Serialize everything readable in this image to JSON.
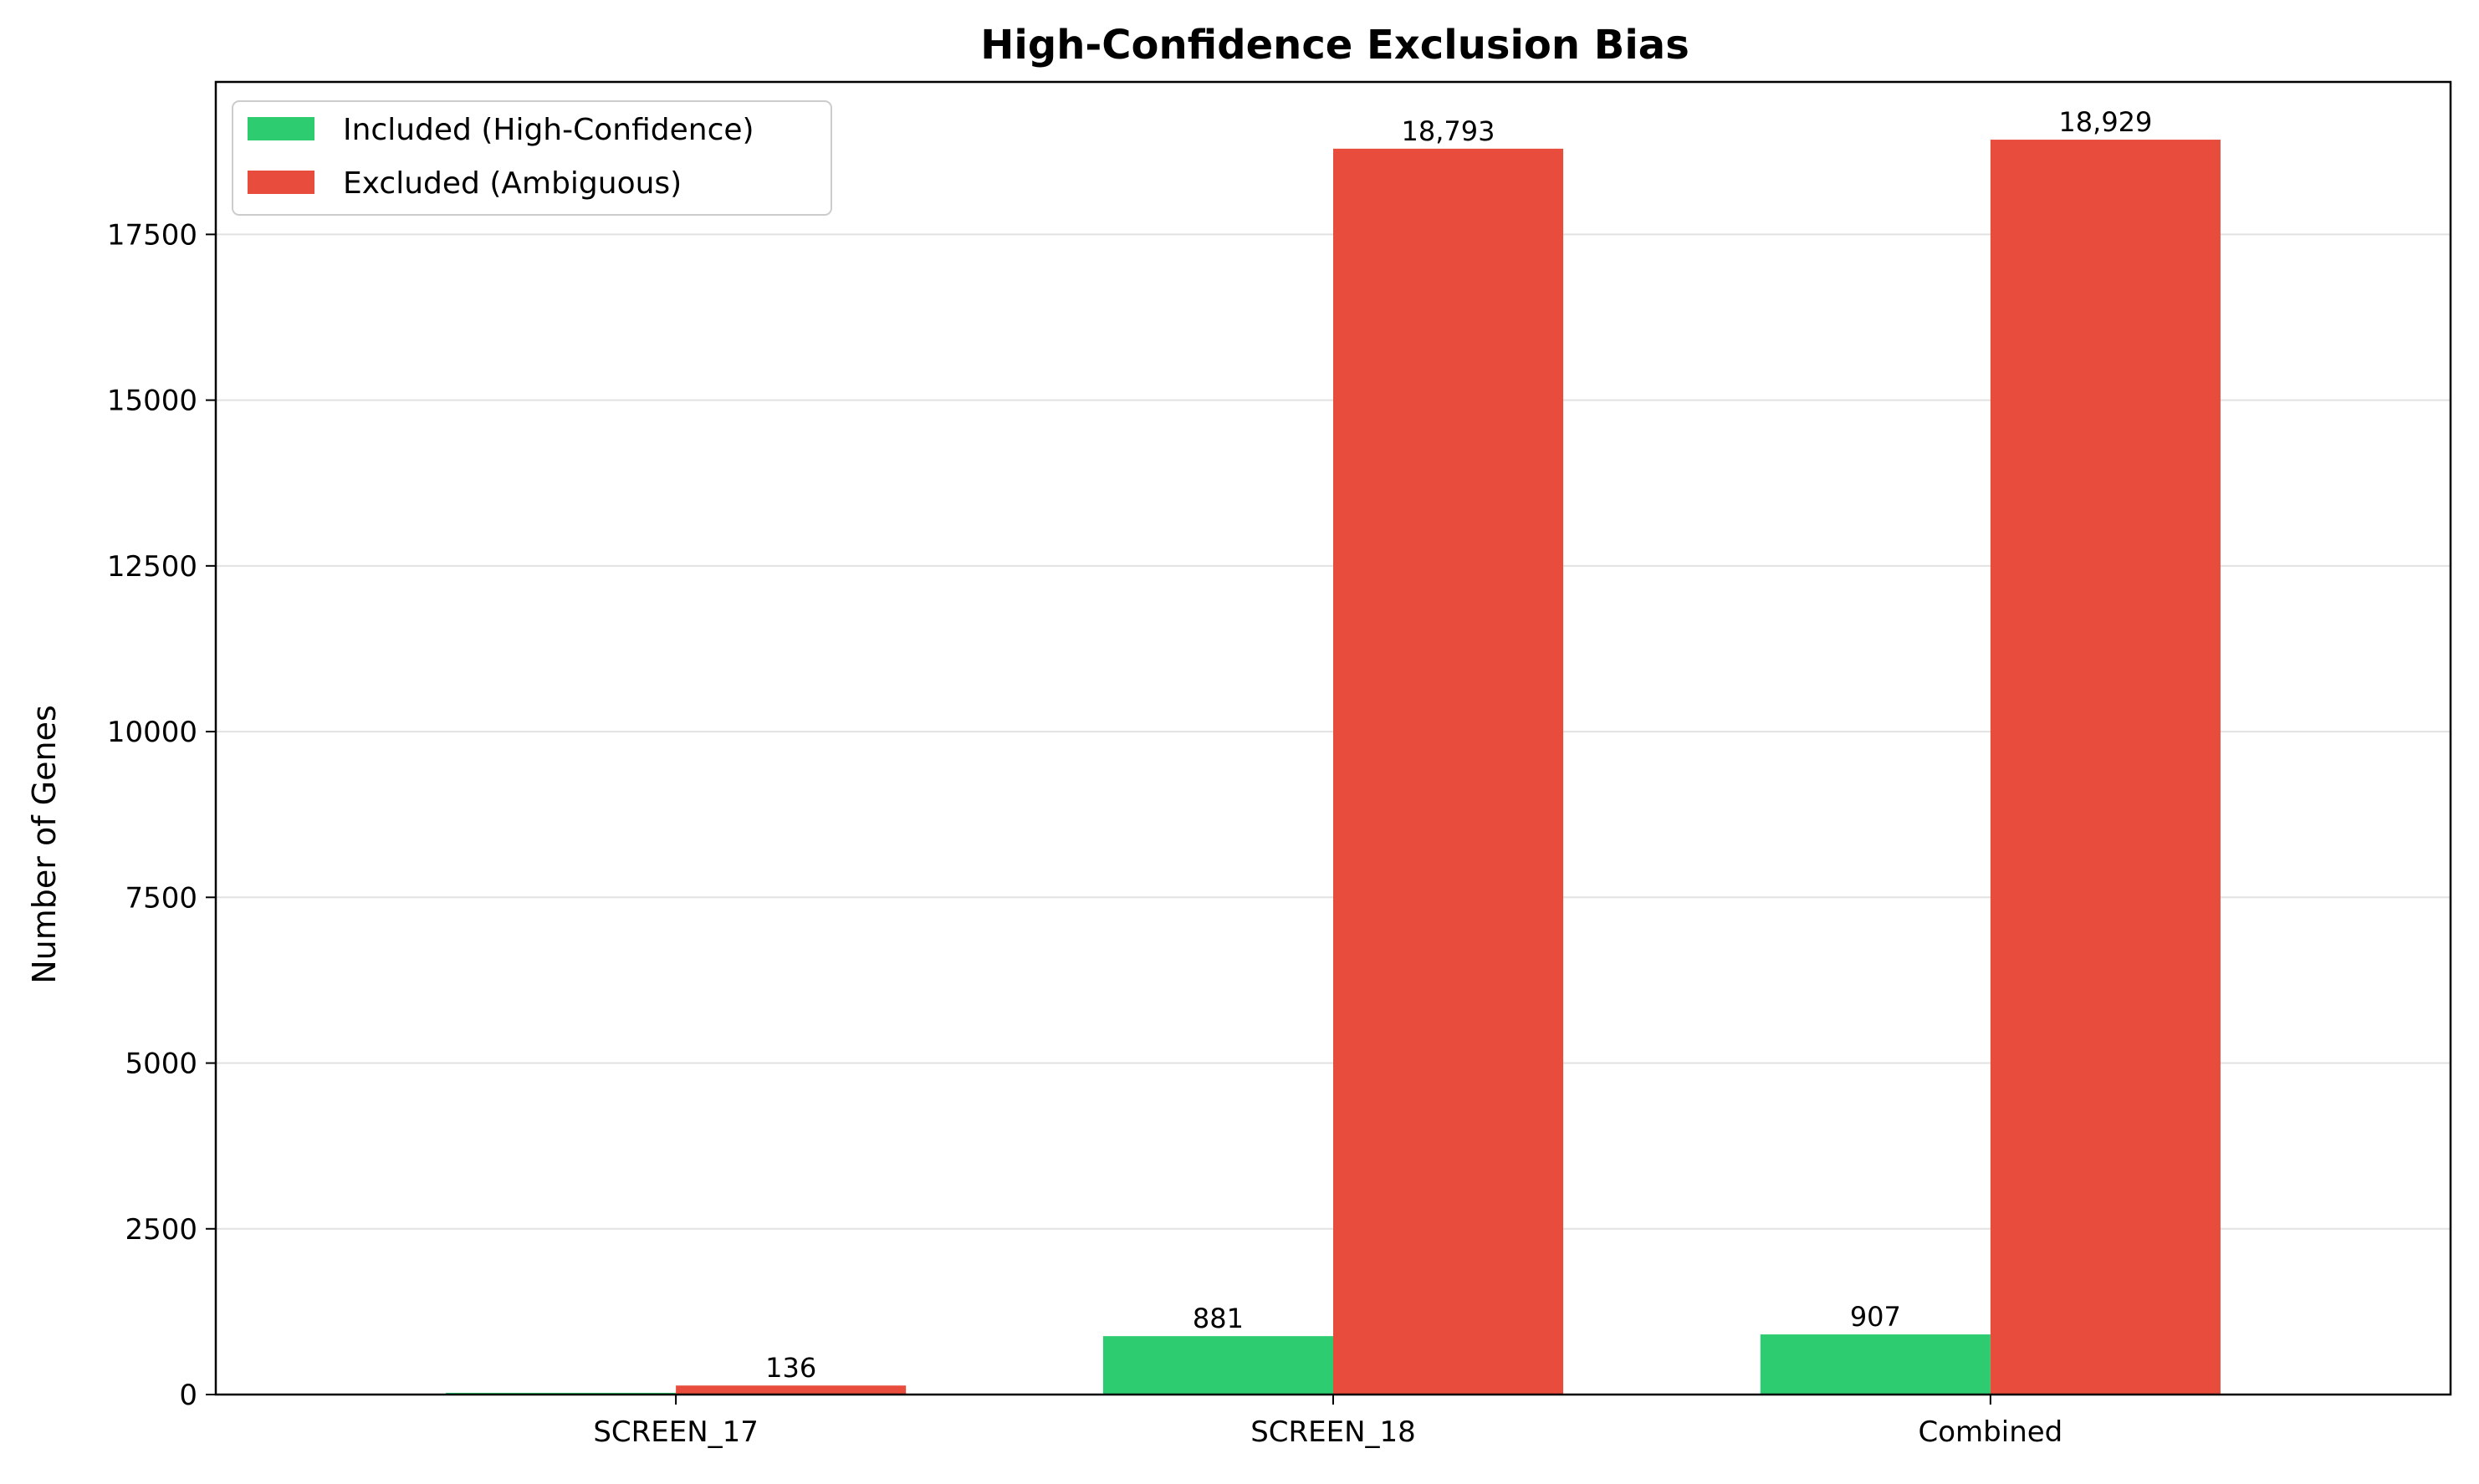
{
  "chart_data": {
    "type": "bar",
    "title": "High-Confidence Exclusion Bias",
    "xlabel": "",
    "ylabel": "Number of Genes",
    "categories": [
      "SCREEN_17",
      "SCREEN_18",
      "Combined"
    ],
    "series": [
      {
        "name": "Included (High-Confidence)",
        "color": "#2ecc71",
        "values": [
          26,
          881,
          907
        ],
        "labels": [
          "",
          "881",
          "907"
        ]
      },
      {
        "name": "Excluded (Ambiguous)",
        "color": "#e74c3c",
        "values": [
          136,
          18793,
          18929
        ],
        "labels": [
          "136",
          "18,793",
          "18,929"
        ]
      }
    ],
    "yticks": [
      0,
      2500,
      5000,
      7500,
      10000,
      12500,
      15000,
      17500
    ],
    "ylim": [
      0,
      19800
    ],
    "grid": "y",
    "legend_position": "top-left"
  }
}
